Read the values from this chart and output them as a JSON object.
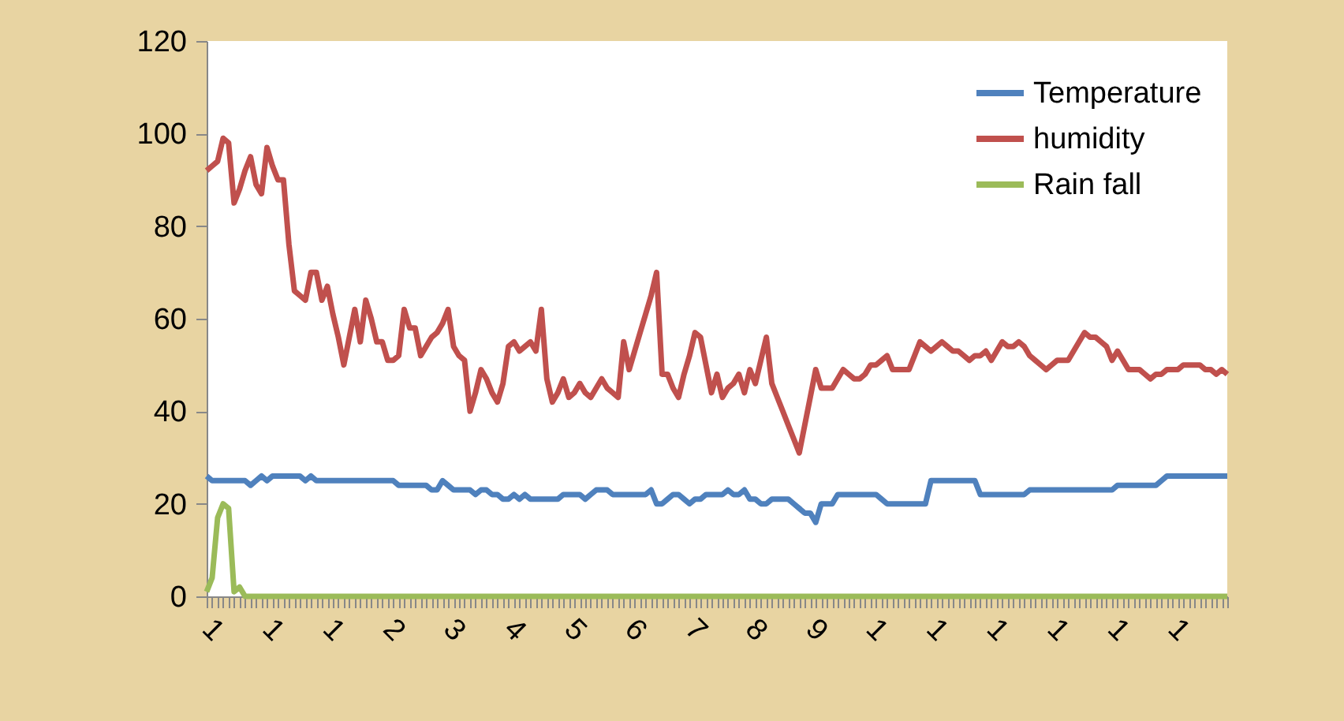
{
  "chart_data": {
    "type": "line",
    "ylim": [
      0,
      120
    ],
    "yticks": [
      0,
      20,
      40,
      60,
      80,
      100,
      120
    ],
    "grid": false,
    "legend": "top right",
    "marker": "none",
    "line_style": "solid",
    "categories": [
      "1",
      null,
      null,
      null,
      null,
      null,
      null,
      null,
      null,
      null,
      null,
      "1",
      null,
      null,
      null,
      null,
      null,
      null,
      null,
      null,
      null,
      null,
      "1",
      null,
      null,
      null,
      null,
      null,
      null,
      null,
      null,
      null,
      null,
      "2",
      null,
      null,
      null,
      null,
      null,
      null,
      null,
      null,
      null,
      null,
      "3",
      null,
      null,
      null,
      null,
      null,
      null,
      null,
      null,
      null,
      null,
      "4",
      null,
      null,
      null,
      null,
      null,
      null,
      null,
      null,
      null,
      null,
      "5",
      null,
      null,
      null,
      null,
      null,
      null,
      null,
      null,
      null,
      null,
      "6",
      null,
      null,
      null,
      null,
      null,
      null,
      null,
      null,
      null,
      null,
      "7",
      null,
      null,
      null,
      null,
      null,
      null,
      null,
      null,
      null,
      null,
      "8",
      null,
      null,
      null,
      null,
      null,
      null,
      null,
      null,
      null,
      null,
      "9",
      null,
      null,
      null,
      null,
      null,
      null,
      null,
      null,
      null,
      null,
      "1",
      null,
      null,
      null,
      null,
      null,
      null,
      null,
      null,
      null,
      null,
      "1",
      null,
      null,
      null,
      null,
      null,
      null,
      null,
      null,
      null,
      null,
      "1",
      null,
      null,
      null,
      null,
      null,
      null,
      null,
      null,
      null,
      null,
      "1",
      null,
      null,
      null,
      null,
      null,
      null,
      null,
      null,
      null,
      null,
      "1",
      null,
      null,
      null,
      null,
      null,
      null,
      null,
      null,
      null,
      null,
      "1",
      null,
      null,
      null,
      null,
      null,
      null,
      null,
      null,
      null,
      null
    ],
    "series": [
      {
        "name": "Temperature",
        "color": "#4f81bd",
        "values": [
          26,
          25,
          25,
          25,
          25,
          25,
          25,
          25,
          24,
          25,
          26,
          25,
          26,
          26,
          26,
          26,
          26,
          26,
          25,
          26,
          25,
          25,
          25,
          25,
          25,
          25,
          25,
          25,
          25,
          25,
          25,
          25,
          25,
          25,
          25,
          24,
          24,
          24,
          24,
          24,
          24,
          23,
          23,
          25,
          24,
          23,
          23,
          23,
          23,
          22,
          23,
          23,
          22,
          22,
          21,
          21,
          22,
          21,
          22,
          21,
          21,
          21,
          21,
          21,
          21,
          22,
          22,
          22,
          22,
          21,
          22,
          23,
          23,
          23,
          22,
          22,
          22,
          22,
          22,
          22,
          22,
          23,
          20,
          20,
          21,
          22,
          22,
          21,
          20,
          21,
          21,
          22,
          22,
          22,
          22,
          23,
          22,
          22,
          23,
          21,
          21,
          20,
          20,
          21,
          21,
          21,
          21,
          20,
          19,
          18,
          18,
          16,
          20,
          20,
          20,
          22,
          22,
          22,
          22,
          22,
          22,
          22,
          22,
          21,
          20,
          20,
          20,
          20,
          20,
          20,
          20,
          20,
          25,
          25,
          25,
          25,
          25,
          25,
          25,
          25,
          25,
          22,
          22,
          22,
          22,
          22,
          22,
          22,
          22,
          22,
          23,
          23,
          23,
          23,
          23,
          23,
          23,
          23,
          23,
          23,
          23,
          23,
          23,
          23,
          23,
          23,
          24,
          24,
          24,
          24,
          24,
          24,
          24,
          24,
          25,
          26,
          26,
          26,
          26,
          26,
          26,
          26,
          26,
          26,
          26,
          26,
          26
        ]
      },
      {
        "name": "humidity",
        "color": "#c0504d",
        "values": [
          92,
          93,
          94,
          99,
          98,
          85,
          88,
          92,
          95,
          89,
          87,
          97,
          93,
          90,
          90,
          76,
          66,
          65,
          64,
          70,
          70,
          64,
          67,
          61,
          56,
          50,
          56,
          62,
          55,
          64,
          60,
          55,
          55,
          51,
          51,
          52,
          62,
          58,
          58,
          52,
          54,
          56,
          57,
          59,
          62,
          54,
          52,
          51,
          40,
          44,
          49,
          47,
          44,
          42,
          46,
          54,
          55,
          53,
          54,
          55,
          53,
          62,
          47,
          42,
          44,
          47,
          43,
          44,
          46,
          44,
          43,
          45,
          47,
          45,
          44,
          43,
          55,
          49,
          53,
          57,
          61,
          65,
          70,
          48,
          48,
          45,
          43,
          48,
          52,
          57,
          56,
          50,
          44,
          48,
          43,
          45,
          46,
          48,
          44,
          49,
          46,
          51,
          56,
          46,
          43,
          40,
          37,
          34,
          31,
          37,
          43,
          49,
          45,
          45,
          45,
          47,
          49,
          48,
          47,
          47,
          48,
          50,
          50,
          51,
          52,
          49,
          49,
          49,
          49,
          52,
          55,
          54,
          53,
          54,
          55,
          54,
          53,
          53,
          52,
          51,
          52,
          52,
          53,
          51,
          53,
          55,
          54,
          54,
          55,
          54,
          52,
          51,
          50,
          49,
          50,
          51,
          51,
          51,
          53,
          55,
          57,
          56,
          56,
          55,
          54,
          51,
          53,
          51,
          49,
          49,
          49,
          48,
          47,
          48,
          48,
          49,
          49,
          49,
          50,
          50,
          50,
          50,
          49,
          49,
          48,
          49,
          48
        ]
      },
      {
        "name": "Rain fall",
        "color": "#9bbb59",
        "values": [
          1,
          4,
          17,
          20,
          19,
          1,
          2,
          0,
          0,
          0,
          0,
          0,
          0,
          0,
          0,
          0,
          0,
          0,
          0,
          0,
          0,
          0,
          0,
          0,
          0,
          0,
          0,
          0,
          0,
          0,
          0,
          0,
          0,
          0,
          0,
          0,
          0,
          0,
          0,
          0,
          0,
          0,
          0,
          0,
          0,
          0,
          0,
          0,
          0,
          0,
          0,
          0,
          0,
          0,
          0,
          0,
          0,
          0,
          0,
          0,
          0,
          0,
          0,
          0,
          0,
          0,
          0,
          0,
          0,
          0,
          0,
          0,
          0,
          0,
          0,
          0,
          0,
          0,
          0,
          0,
          0,
          0,
          0,
          0,
          0,
          0,
          0,
          0,
          0,
          0,
          0,
          0,
          0,
          0,
          0,
          0,
          0,
          0,
          0,
          0,
          0,
          0,
          0,
          0,
          0,
          0,
          0,
          0,
          0,
          0,
          0,
          0,
          0,
          0,
          0,
          0,
          0,
          0,
          0,
          0,
          0,
          0,
          0,
          0,
          0,
          0,
          0,
          0,
          0,
          0,
          0,
          0,
          0,
          0,
          0,
          0,
          0,
          0,
          0,
          0,
          0,
          0,
          0,
          0,
          0,
          0,
          0,
          0,
          0,
          0,
          0,
          0,
          0,
          0,
          0,
          0,
          0,
          0,
          0,
          0,
          0,
          0,
          0,
          0,
          0,
          0,
          0,
          0,
          0,
          0,
          0,
          0,
          0,
          0,
          0,
          0,
          0,
          0,
          0,
          0,
          0,
          0,
          0,
          0,
          0,
          0,
          0
        ]
      }
    ]
  }
}
